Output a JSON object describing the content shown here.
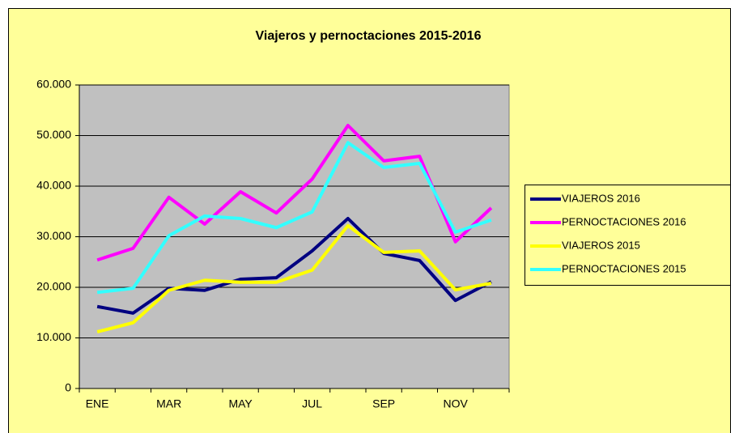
{
  "chart_data": {
    "type": "line",
    "title": "Viajeros y pernoctaciones 2015-2016",
    "categories": [
      "ENE",
      null,
      "MAR",
      null,
      "MAY",
      null,
      "JUL",
      null,
      "SEP",
      null,
      "NOV",
      null
    ],
    "series": [
      {
        "name": "VIAJEROS 2016",
        "color": "#000080",
        "values": [
          16200,
          14900,
          19800,
          19400,
          21600,
          21900,
          27200,
          33600,
          26700,
          25300,
          17400,
          21100
        ]
      },
      {
        "name": "PERNOCTACIONES 2016",
        "color": "#ff00ff",
        "values": [
          25400,
          27700,
          37800,
          32500,
          38900,
          34700,
          41400,
          52000,
          45000,
          45900,
          29000,
          35700
        ]
      },
      {
        "name": "VIAJEROS 2015",
        "color": "#ffff00",
        "values": [
          11200,
          13000,
          19400,
          21400,
          21000,
          21000,
          23400,
          32200,
          26900,
          27200,
          19500,
          20800
        ]
      },
      {
        "name": "PERNOCTACIONES 2015",
        "color": "#33ffff",
        "values": [
          19000,
          19800,
          30200,
          34100,
          33600,
          31800,
          34900,
          48600,
          43700,
          44500,
          30900,
          33300
        ]
      }
    ],
    "ylim": [
      0,
      60000
    ],
    "yticks": [
      0,
      {
        "value": 10000,
        "label": "10.000"
      },
      {
        "value": 20000,
        "label": "20.000"
      },
      {
        "value": 30000,
        "label": "30.000"
      },
      {
        "value": 40000,
        "label": "40.000"
      },
      {
        "value": 50000,
        "label": "50.000"
      },
      {
        "value": 60000,
        "label": "60.000"
      }
    ],
    "grid": true,
    "legend": "right"
  }
}
